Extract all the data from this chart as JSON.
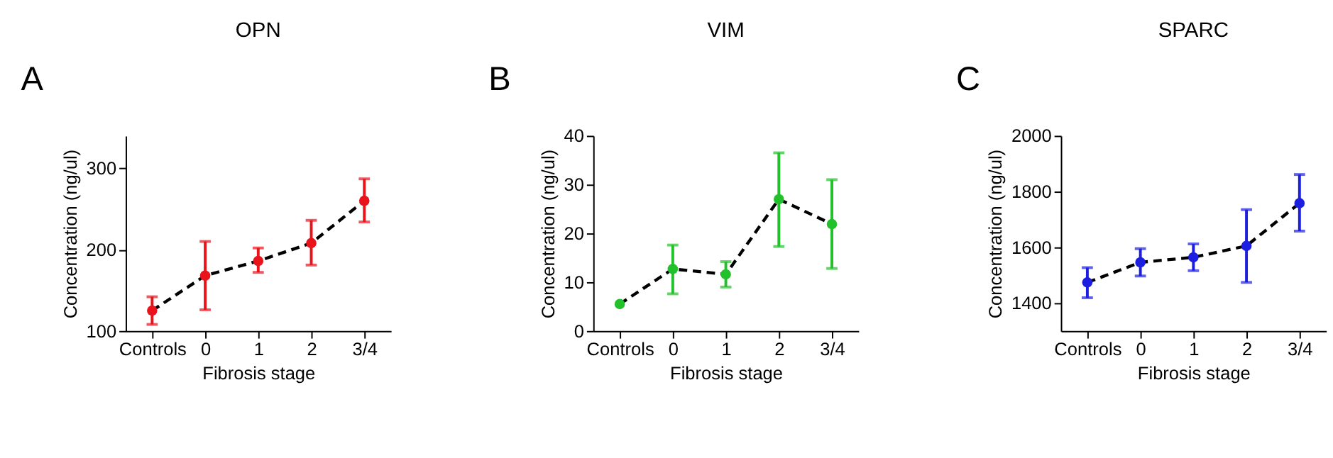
{
  "chart_data": [
    {
      "type": "line",
      "title": "OPN",
      "xlabel": "Fibrosis stage",
      "ylabel": "Concentration (ng/ul)",
      "annotations": [
        "A"
      ],
      "categories": [
        "Controls",
        "0",
        "1",
        "2",
        "3/4"
      ],
      "series": [
        {
          "color": "#e8131b",
          "values": [
            125,
            168,
            186,
            208,
            260
          ],
          "errors": [
            [
              108,
              142
            ],
            [
              126,
              210
            ],
            [
              172,
              202
            ],
            [
              181,
              236
            ],
            [
              234,
              287
            ]
          ]
        }
      ],
      "ylim": [
        100,
        340
      ],
      "yticks": [
        100,
        200,
        300
      ],
      "grid": false,
      "marker": "circle",
      "line_style": "dashed"
    },
    {
      "type": "line",
      "title": "VIM",
      "xlabel": "Fibrosis stage",
      "ylabel": "Concentration (ng/ul)",
      "annotations": [
        "B"
      ],
      "categories": [
        "Controls",
        "0",
        "1",
        "2",
        "3/4"
      ],
      "series": [
        {
          "color": "#22c02a",
          "values": [
            5.5,
            12.7,
            11.6,
            27.0,
            21.9
          ],
          "errors": [
            null,
            [
              7.6,
              17.6
            ],
            [
              9.0,
              14.2
            ],
            [
              17.3,
              36.5
            ],
            [
              12.8,
              31.0
            ]
          ]
        }
      ],
      "ylim": [
        0,
        40
      ],
      "yticks": [
        0,
        10,
        20,
        30,
        40
      ],
      "grid": false,
      "marker": "circle",
      "line_style": "dashed"
    },
    {
      "type": "line",
      "title": "SPARC",
      "xlabel": "Fibrosis stage",
      "ylabel": "Concentration (ng/ul)",
      "annotations": [
        "C"
      ],
      "categories": [
        "Controls",
        "0",
        "1",
        "2",
        "3/4"
      ],
      "series": [
        {
          "color": "#1c1ee0",
          "values": [
            1474,
            1546,
            1564,
            1605,
            1758
          ],
          "errors": [
            [
              1419,
              1527
            ],
            [
              1497,
              1595
            ],
            [
              1516,
              1612
            ],
            [
              1474,
              1735
            ],
            [
              1658,
              1861
            ]
          ]
        }
      ],
      "ylim": [
        1300,
        2000
      ],
      "yticks": [
        1400,
        1600,
        1800,
        2000
      ],
      "grid": false,
      "marker": "circle",
      "line_style": "dashed"
    }
  ]
}
